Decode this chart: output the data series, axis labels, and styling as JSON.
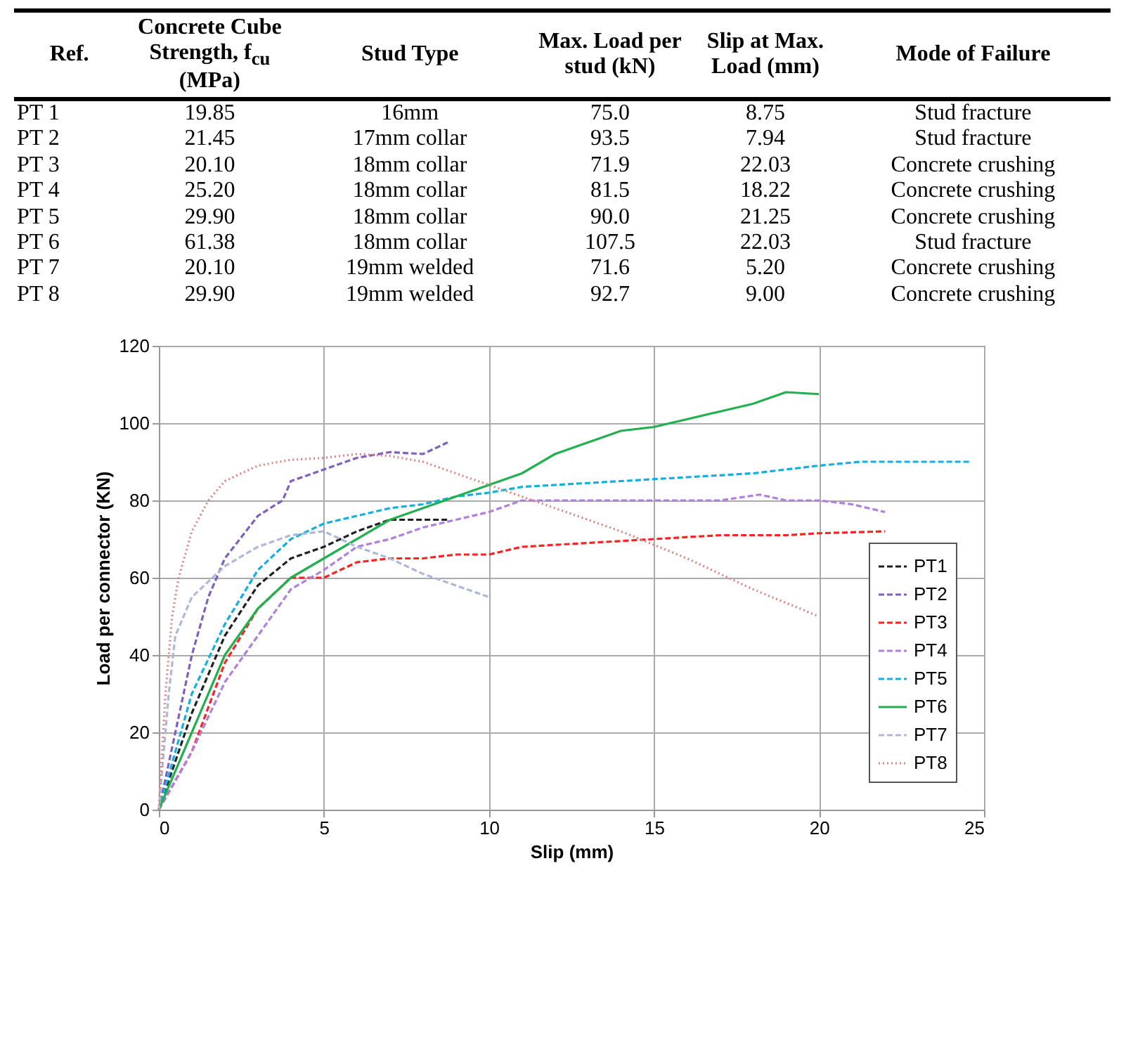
{
  "chart_data": [
    {
      "type": "other",
      "categories": [
        "Ref.",
        "Concrete Cube Strength, f$_{cu}$ (MPa)",
        "Stud Type",
        "Max. Load per stud (kN)",
        "Slip at Max. Load (mm)",
        "Mode of Failure"
      ],
      "annotations": [
        "PT 1",
        "19.85",
        "16mm",
        "75.0",
        "8.75",
        "Stud fracture",
        "PT 2",
        "21.45",
        "17mm collar",
        "93.5",
        "7.94",
        "Stud fracture",
        "PT 3",
        "20.10",
        "18mm collar",
        "71.9",
        "22.03",
        "Concrete crushing",
        "PT 4",
        "25.20",
        "18mm collar",
        "81.5",
        "18.22",
        "Concrete crushing",
        "PT 5",
        "29.90",
        "18mm collar",
        "90.0",
        "21.25",
        "Concrete crushing",
        "PT 6",
        "61.38",
        "18mm collar",
        "107.5",
        "22.03",
        "Stud fracture",
        "PT 7",
        "20.10",
        "19mm welded",
        "71.6",
        "5.20",
        "Concrete crushing",
        "PT 8",
        "29.90",
        "19mm welded",
        "92.7",
        "9.00",
        "Concrete crushing"
      ]
    },
    {
      "type": "line",
      "xlabel": "Slip (mm)",
      "ylabel": "Load per connector (KN)",
      "xlim": [
        0,
        25
      ],
      "ylim": [
        0,
        120
      ],
      "xticks": [
        0,
        5,
        10,
        15,
        20,
        25
      ],
      "yticks": [
        0,
        20,
        40,
        60,
        80,
        100,
        120
      ],
      "grid": true,
      "legend": "bottom right",
      "marker": "none",
      "series": [
        {
          "name": "PT1",
          "color": "#202020",
          "line_style": "dashed",
          "x": [
            0,
            1,
            2,
            3,
            4,
            5,
            6,
            7,
            8,
            8.75
          ],
          "values": [
            0,
            25,
            45,
            58,
            65,
            68,
            72,
            75,
            75,
            75
          ]
        },
        {
          "name": "PT2",
          "color": "#7f5fbf",
          "line_style": "dashed",
          "x": [
            0,
            0.5,
            1,
            1.5,
            2,
            3,
            3.75,
            4,
            5,
            6,
            7,
            8,
            8.75
          ],
          "values": [
            0,
            20,
            40,
            55,
            65,
            76,
            80,
            85,
            88,
            91,
            92.5,
            92,
            95
          ]
        },
        {
          "name": "PT3",
          "color": "#ff2020",
          "line_style": "dashed",
          "x": [
            0,
            1,
            2,
            3,
            4,
            5,
            6,
            7,
            8,
            9,
            10,
            11,
            13,
            15,
            17,
            19,
            20,
            22
          ],
          "values": [
            0,
            15,
            38,
            52,
            60,
            60,
            64,
            65,
            65,
            66,
            66,
            68,
            69,
            70,
            71,
            71,
            71.5,
            72
          ]
        },
        {
          "name": "PT4",
          "color": "#b07fdf",
          "line_style": "dashed",
          "x": [
            0,
            1,
            2,
            3,
            4,
            5,
            6,
            7,
            8,
            9,
            10,
            11,
            12,
            15,
            17,
            18.2,
            19,
            20,
            21,
            22
          ],
          "values": [
            0,
            15,
            33,
            45,
            57,
            62,
            68,
            70,
            73,
            75,
            77,
            80,
            80,
            80,
            80,
            81.5,
            80,
            80,
            79,
            77
          ]
        },
        {
          "name": "PT5",
          "color": "#10b0e0",
          "line_style": "dashed",
          "x": [
            0,
            0.5,
            1,
            2,
            3,
            4,
            5,
            6,
            7,
            8,
            9,
            10,
            11,
            12,
            14,
            16,
            18,
            20,
            21.25,
            24.6
          ],
          "values": [
            0,
            15,
            30,
            48,
            62,
            70,
            74,
            76,
            78,
            79,
            81,
            82,
            83.5,
            84,
            85,
            86,
            87,
            89,
            90,
            90
          ]
        },
        {
          "name": "PT6",
          "color": "#20b050",
          "line_style": "solid",
          "x": [
            0,
            1,
            2,
            3,
            4,
            5,
            6,
            7,
            8,
            9,
            10,
            11,
            12,
            13,
            14,
            15,
            16,
            17,
            18,
            19,
            20
          ],
          "values": [
            0,
            20,
            40,
            52,
            60,
            65,
            70,
            75,
            78,
            81,
            84,
            87,
            92,
            95,
            98,
            99,
            101,
            103,
            105,
            108,
            107.5
          ]
        },
        {
          "name": "PT7",
          "color": "#b0b8d8",
          "line_style": "dashed",
          "x": [
            0,
            0.3,
            0.5,
            1,
            2,
            3,
            4,
            5,
            6,
            7,
            8,
            9,
            10
          ],
          "values": [
            0,
            30,
            45,
            55,
            63,
            68,
            71,
            72,
            68,
            65,
            61,
            58,
            55
          ]
        },
        {
          "name": "PT8",
          "color": "#e08080",
          "line_style": "dotted",
          "x": [
            0,
            0.2,
            0.4,
            0.6,
            1,
            1.5,
            2,
            3,
            4,
            5,
            6,
            7,
            8,
            9,
            10,
            12,
            14,
            16,
            18,
            20
          ],
          "values": [
            0,
            30,
            50,
            60,
            72,
            80,
            85,
            89,
            90.5,
            91,
            92,
            91.5,
            90,
            87,
            84,
            78,
            72,
            65,
            57,
            50
          ]
        }
      ]
    }
  ]
}
